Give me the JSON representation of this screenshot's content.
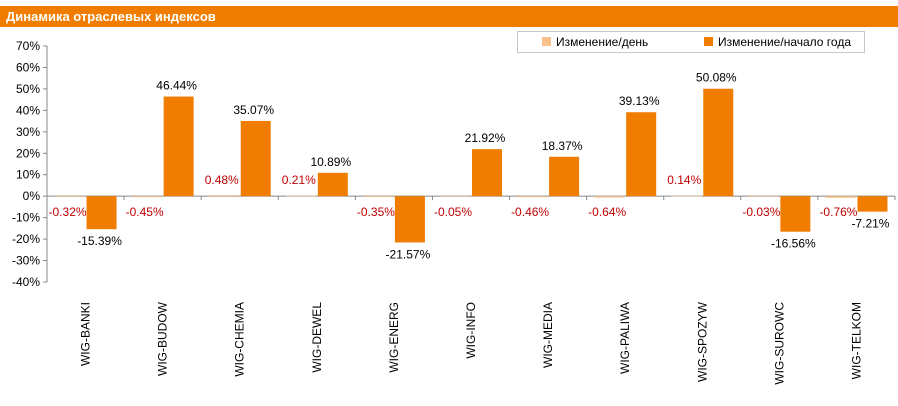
{
  "header": {
    "title": "Динамика отраслевых индексов"
  },
  "legend": {
    "daily_label": "Изменение/день",
    "ytd_label": "Изменение/начало года"
  },
  "colors": {
    "accent": "#f07d00",
    "daily": "#f9c08a",
    "ytd": "#f07d00",
    "daily_label_text": "#c00000",
    "axis": "#888888",
    "grid": "#d9d9d9"
  },
  "chart_data": {
    "type": "bar",
    "title": "Динамика отраслевых индексов",
    "categories": [
      "WIG-BANKI",
      "WIG-BUDOW",
      "WIG-CHEMIA",
      "WIG-DEWEL",
      "WIG-ENERG",
      "WIG-INFO",
      "WIG-MEDIA",
      "WIG-PALIWA",
      "WIG-SPOZYW",
      "WIG-SUROWC",
      "WIG-TELKOM"
    ],
    "series": [
      {
        "name": "Изменение/день",
        "values": [
          -0.32,
          -0.45,
          0.48,
          0.21,
          -0.35,
          -0.05,
          -0.46,
          -0.64,
          0.14,
          -0.03,
          -0.76
        ],
        "labels": [
          "-0.32%",
          "-0.45%",
          "0.48%",
          "0.21%",
          "-0.35%",
          "-0.05%",
          "-0.46%",
          "-0.64%",
          "0.14%",
          "-0.03%",
          "-0.76%"
        ]
      },
      {
        "name": "Изменение/начало года",
        "values": [
          -15.39,
          46.44,
          35.07,
          10.89,
          -21.57,
          21.92,
          18.37,
          39.13,
          50.08,
          -16.56,
          -7.21
        ],
        "labels": [
          "-15.39%",
          "46.44%",
          "35.07%",
          "10.89%",
          "-21.57%",
          "21.92%",
          "18.37%",
          "39.13%",
          "50.08%",
          "-16.56%",
          "-7.21%"
        ]
      }
    ],
    "yticks": [
      "70%",
      "60%",
      "50%",
      "40%",
      "30%",
      "20%",
      "10%",
      "0%",
      "-10%",
      "-20%",
      "-30%",
      "-40%"
    ],
    "ylim": [
      -40,
      70
    ],
    "ylabel": "",
    "xlabel": "",
    "grid": false,
    "legend_position": "top-right"
  }
}
